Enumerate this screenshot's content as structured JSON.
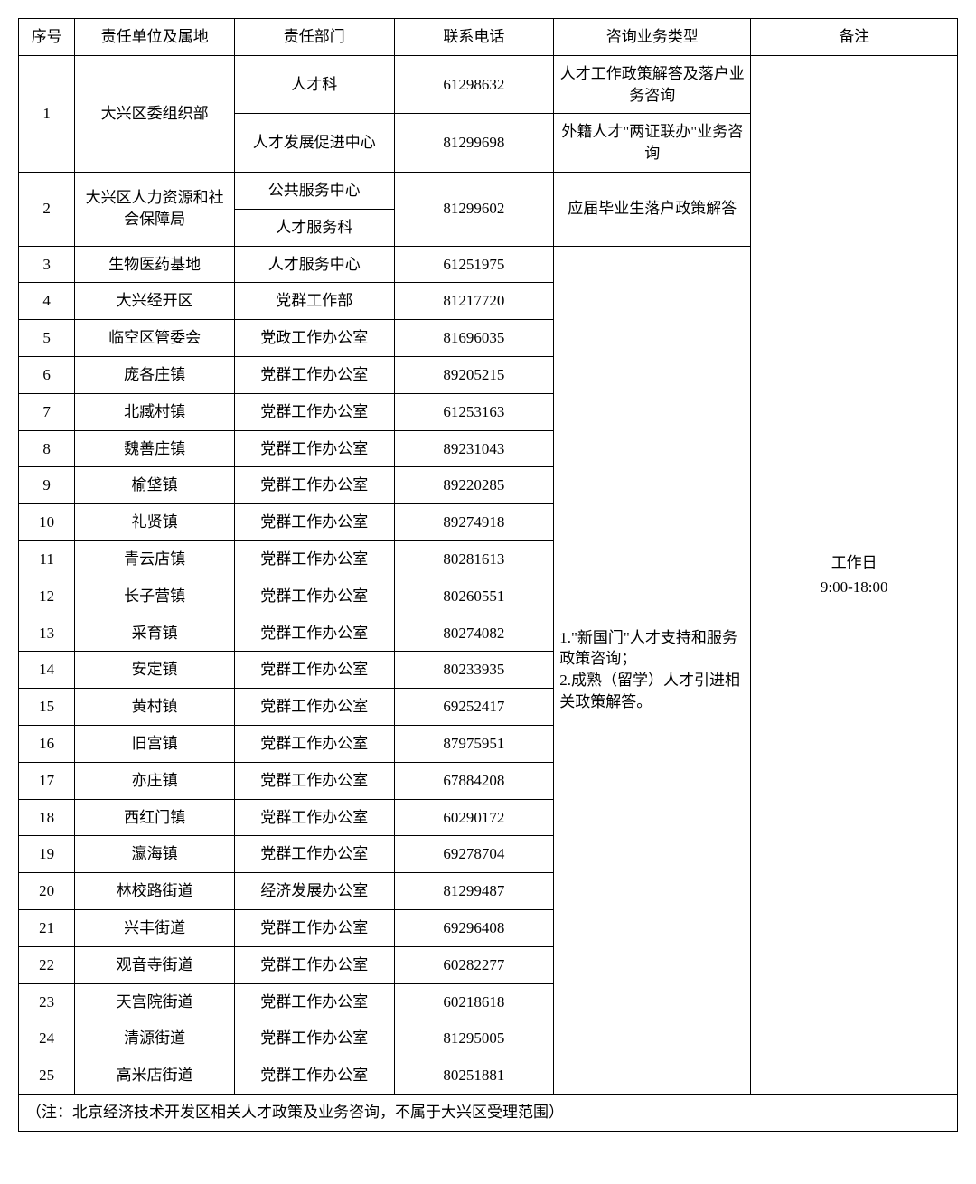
{
  "headers": {
    "seq": "序号",
    "unit": "责任单位及属地",
    "dept": "责任部门",
    "phone": "联系电话",
    "biz": "咨询业务类型",
    "note": "备注"
  },
  "row1": {
    "seq": "1",
    "unit": "大兴区委组织部",
    "dept_a": "人才科",
    "phone_a": "61298632",
    "biz_a": "人才工作政策解答及落户业务咨询",
    "dept_b": "人才发展促进中心",
    "phone_b": "81299698",
    "biz_b": "外籍人才\"两证联办\"业务咨询"
  },
  "row2": {
    "seq": "2",
    "unit": "大兴区人力资源和社会保障局",
    "dept_a": "公共服务中心",
    "dept_b": "人才服务科",
    "phone": "81299602",
    "biz": "应届毕业生落户政策解答"
  },
  "rows_simple": [
    {
      "seq": "3",
      "unit": "生物医药基地",
      "dept": "人才服务中心",
      "phone": "61251975"
    },
    {
      "seq": "4",
      "unit": "大兴经开区",
      "dept": "党群工作部",
      "phone": "81217720"
    },
    {
      "seq": "5",
      "unit": "临空区管委会",
      "dept": "党政工作办公室",
      "phone": "81696035"
    },
    {
      "seq": "6",
      "unit": "庞各庄镇",
      "dept": "党群工作办公室",
      "phone": "89205215"
    },
    {
      "seq": "7",
      "unit": "北臧村镇",
      "dept": "党群工作办公室",
      "phone": "61253163"
    },
    {
      "seq": "8",
      "unit": "魏善庄镇",
      "dept": "党群工作办公室",
      "phone": "89231043"
    },
    {
      "seq": "9",
      "unit": "榆垡镇",
      "dept": "党群工作办公室",
      "phone": "89220285"
    },
    {
      "seq": "10",
      "unit": "礼贤镇",
      "dept": "党群工作办公室",
      "phone": "89274918"
    },
    {
      "seq": "11",
      "unit": "青云店镇",
      "dept": "党群工作办公室",
      "phone": "80281613"
    },
    {
      "seq": "12",
      "unit": "长子营镇",
      "dept": "党群工作办公室",
      "phone": "80260551"
    },
    {
      "seq": "13",
      "unit": "采育镇",
      "dept": "党群工作办公室",
      "phone": "80274082"
    },
    {
      "seq": "14",
      "unit": "安定镇",
      "dept": "党群工作办公室",
      "phone": "80233935"
    },
    {
      "seq": "15",
      "unit": "黄村镇",
      "dept": "党群工作办公室",
      "phone": "69252417"
    },
    {
      "seq": "16",
      "unit": "旧宫镇",
      "dept": "党群工作办公室",
      "phone": "87975951"
    },
    {
      "seq": "17",
      "unit": "亦庄镇",
      "dept": "党群工作办公室",
      "phone": "67884208"
    },
    {
      "seq": "18",
      "unit": "西红门镇",
      "dept": "党群工作办公室",
      "phone": "60290172"
    },
    {
      "seq": "19",
      "unit": "瀛海镇",
      "dept": "党群工作办公室",
      "phone": "69278704"
    },
    {
      "seq": "20",
      "unit": "林校路街道",
      "dept": "经济发展办公室",
      "phone": "81299487"
    },
    {
      "seq": "21",
      "unit": "兴丰街道",
      "dept": "党群工作办公室",
      "phone": "69296408"
    },
    {
      "seq": "22",
      "unit": "观音寺街道",
      "dept": "党群工作办公室",
      "phone": "60282277"
    },
    {
      "seq": "23",
      "unit": "天宫院街道",
      "dept": "党群工作办公室",
      "phone": "60218618"
    },
    {
      "seq": "24",
      "unit": "清源街道",
      "dept": "党群工作办公室",
      "phone": "81295005"
    },
    {
      "seq": "25",
      "unit": "高米店街道",
      "dept": "党群工作办公室",
      "phone": "80251881"
    }
  ],
  "biz_merged": "1.\"新国门\"人才支持和服务政策咨询；\n2.成熟（留学）人才引进相关政策解答。",
  "note_merged": "工作日\n9:00-18:00",
  "footnote": "（注：北京经济技术开发区相关人才政策及业务咨询，不属于大兴区受理范围）"
}
